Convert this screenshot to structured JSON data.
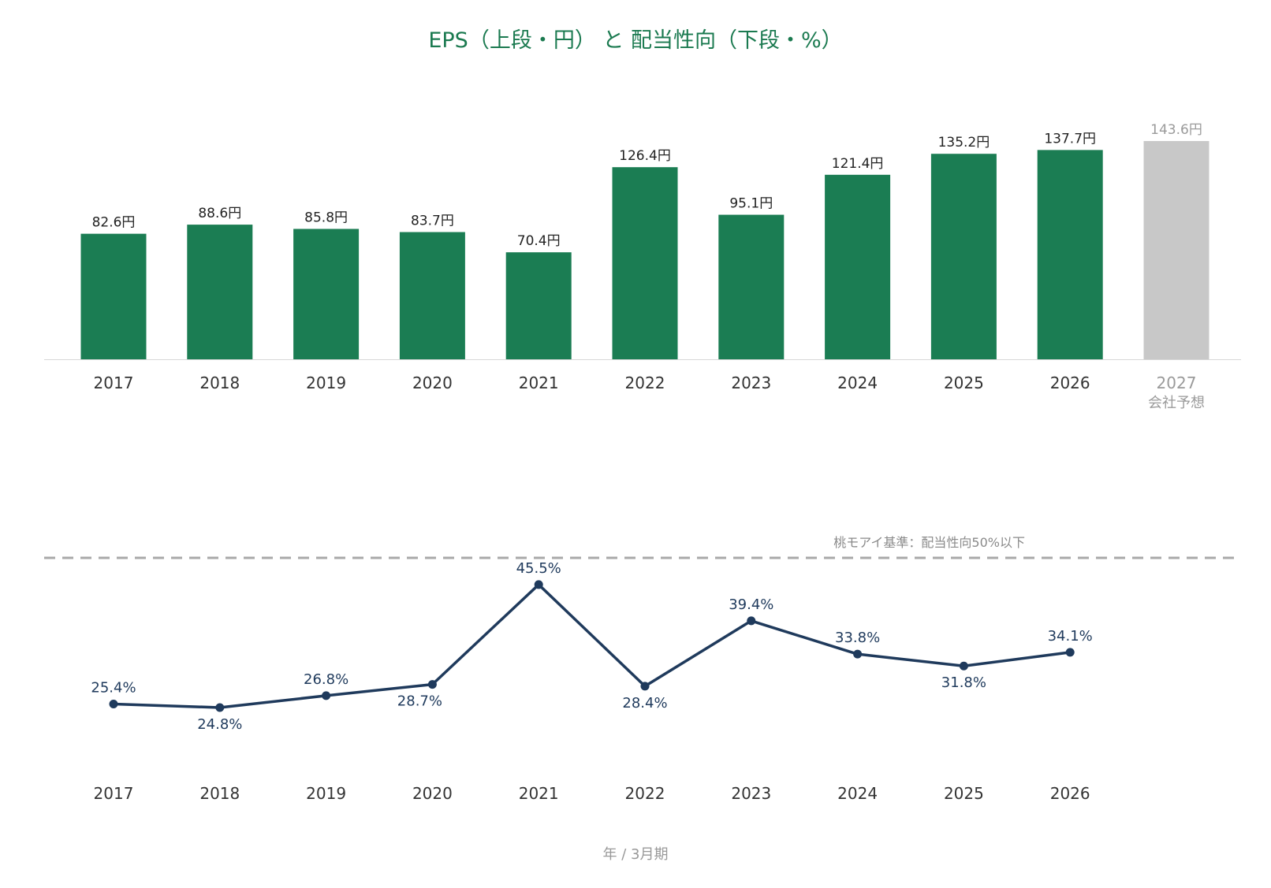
{
  "title": "EPS（上段・円） と 配当性向（下段・%）",
  "x_axis_caption": "年 / 3月期",
  "colors": {
    "title": "#1b7a50",
    "eps_bar": "#1b7d53",
    "forecast_bar": "#c8c8c8",
    "forecast_text": "#9a9a9a",
    "payout_line": "#1f3a5c",
    "reference_line": "#a8a8a8",
    "reference_text": "#8a8a8a",
    "axis_text": "#333333",
    "bar_label_text": "#222222",
    "baseline": "#d8d8d8",
    "caption_text": "#999999"
  },
  "chart_data": [
    {
      "type": "bar",
      "name": "EPS",
      "unit": "円",
      "categories": [
        "2017",
        "2018",
        "2019",
        "2020",
        "2021",
        "2022",
        "2023",
        "2024",
        "2025",
        "2026",
        "2027"
      ],
      "category_sublabels": [
        "",
        "",
        "",
        "",
        "",
        "",
        "",
        "",
        "",
        "",
        "会社予想"
      ],
      "values": [
        82.6,
        88.6,
        85.8,
        83.7,
        70.4,
        126.4,
        95.1,
        121.4,
        135.2,
        137.7,
        143.6
      ],
      "data_labels": [
        "82.6円",
        "88.6円",
        "85.8円",
        "83.7円",
        "70.4円",
        "126.4円",
        "95.1円",
        "121.4円",
        "135.2円",
        "137.7円",
        "143.6円"
      ],
      "forecast": [
        false,
        false,
        false,
        false,
        false,
        false,
        false,
        false,
        false,
        false,
        true
      ],
      "ylim": [
        0,
        143.6
      ]
    },
    {
      "type": "line",
      "name": "配当性向",
      "unit": "%",
      "categories": [
        "2017",
        "2018",
        "2019",
        "2020",
        "2021",
        "2022",
        "2023",
        "2024",
        "2025",
        "2026"
      ],
      "values": [
        25.4,
        24.8,
        26.8,
        28.7,
        45.5,
        28.4,
        39.4,
        33.8,
        31.8,
        34.1
      ],
      "data_labels": [
        "25.4%",
        "24.8%",
        "26.8%",
        "28.7%",
        "45.5%",
        "28.4%",
        "39.4%",
        "33.8%",
        "31.8%",
        "34.1%"
      ],
      "label_placement": [
        "above",
        "below",
        "above",
        "below",
        "above",
        "below",
        "above",
        "above",
        "below",
        "above"
      ],
      "reference_line": {
        "value": 50,
        "label": "桃モアイ基準：配当性向50%以下"
      }
    }
  ]
}
